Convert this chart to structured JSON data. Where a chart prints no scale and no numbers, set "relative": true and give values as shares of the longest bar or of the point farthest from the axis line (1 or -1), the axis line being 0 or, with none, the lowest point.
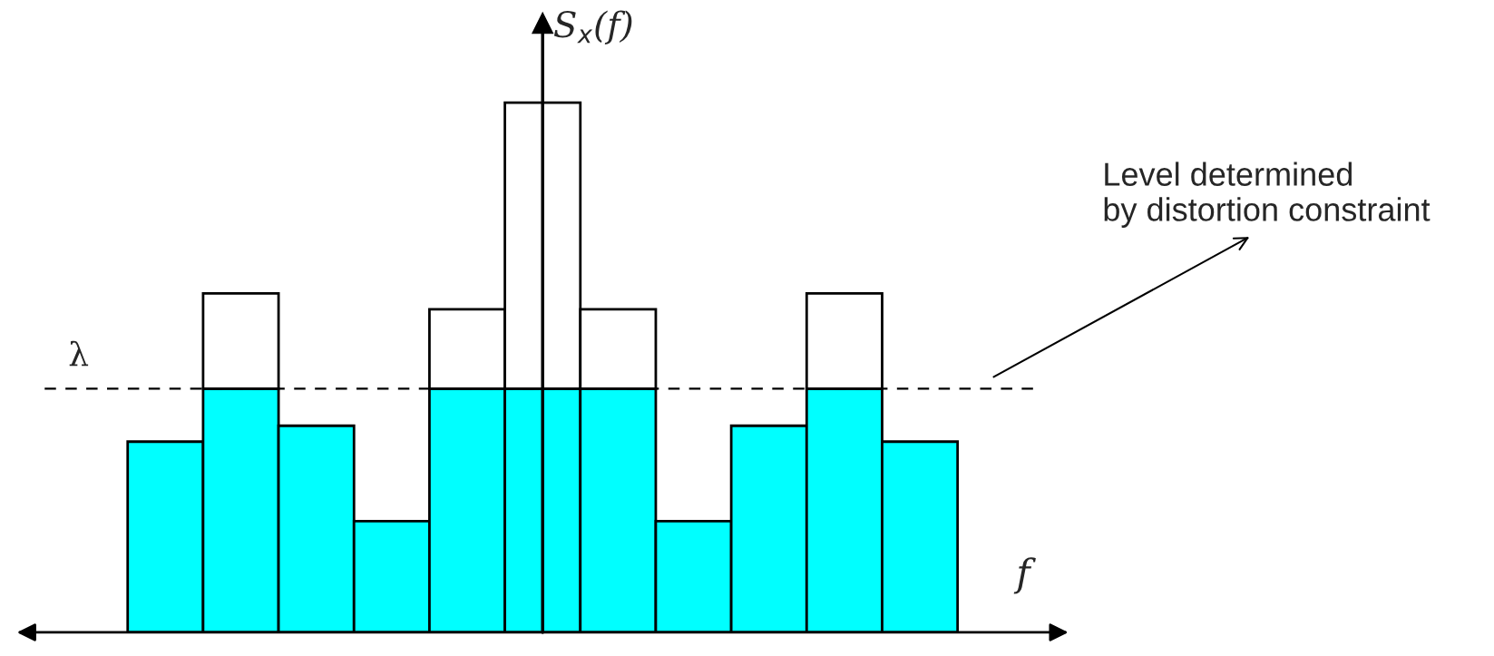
{
  "chart_data": {
    "type": "bar",
    "relative": true,
    "stacked": true,
    "legend": false,
    "grid": false,
    "categories": [
      null,
      null,
      null,
      null,
      null,
      null,
      null,
      null,
      null,
      null,
      null
    ],
    "series": [
      {
        "color": "#00ffff",
        "values": [
          0.36,
          0.46,
          0.39,
          0.21,
          0.46,
          0.46,
          0.46,
          0.21,
          0.39,
          0.46,
          0.36
        ]
      },
      {
        "color": "#ffffff",
        "values": [
          null,
          0.18,
          null,
          null,
          0.15,
          0.54,
          0.15,
          null,
          null,
          0.18,
          null
        ]
      }
    ],
    "xlabel": "f",
    "ylabel": "S$_{x}$(f)",
    "ref_lines": [
      {
        "axis": "y",
        "value": 0.46,
        "label": "λ",
        "line_style": "dashed",
        "color": "#000000"
      }
    ],
    "annotations": [
      "Level determined\nby distortion constraint"
    ]
  }
}
